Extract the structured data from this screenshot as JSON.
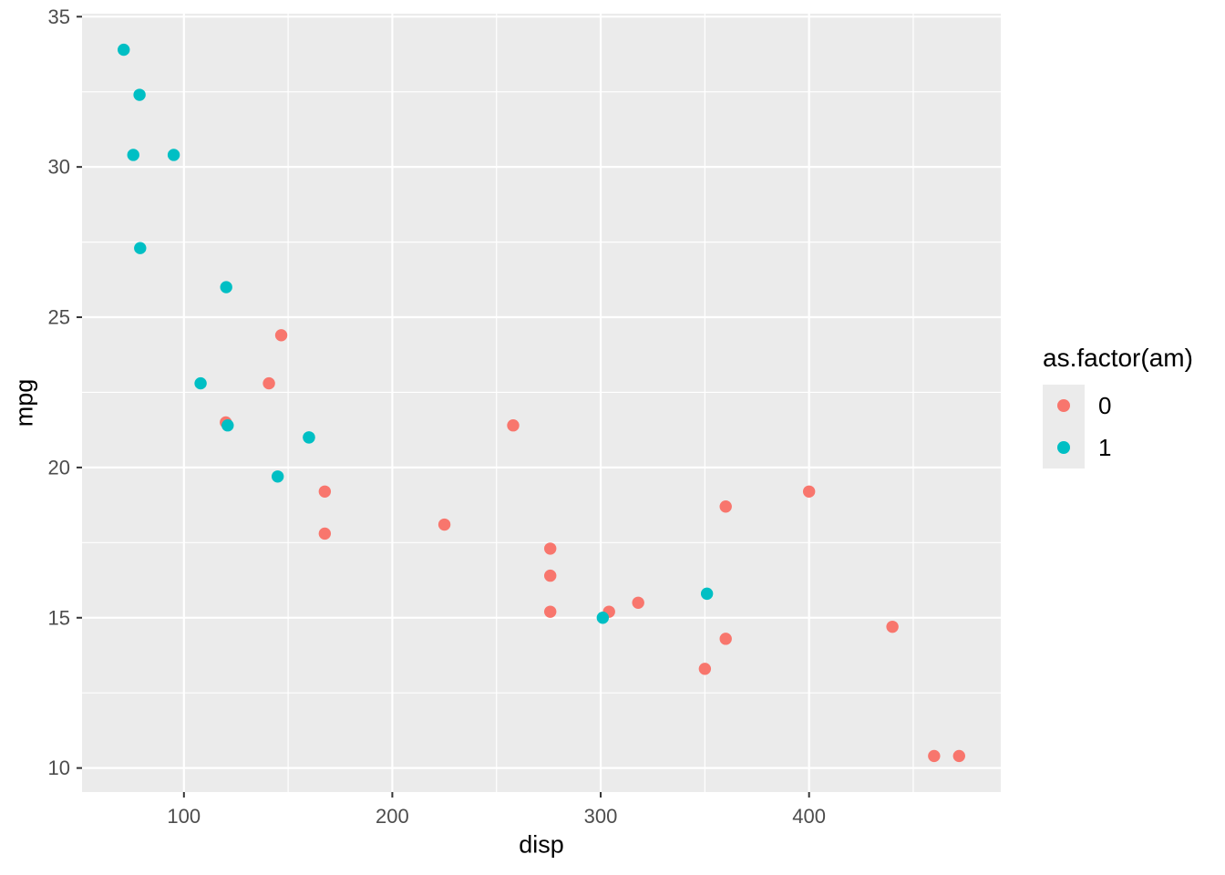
{
  "chart_data": {
    "type": "scatter",
    "title": "",
    "xlabel": "disp",
    "ylabel": "mpg",
    "xlim": [
      51.1,
      492.0
    ],
    "ylim": [
      9.2,
      35.1
    ],
    "x_major_ticks": [
      100,
      200,
      300,
      400
    ],
    "y_major_ticks": [
      10,
      15,
      20,
      25,
      30,
      35
    ],
    "x_minor_gridlines": [
      150,
      250,
      350,
      450
    ],
    "y_minor_gridlines": [
      12.5,
      17.5,
      22.5,
      27.5,
      32.5
    ],
    "grid": "on",
    "panel_background": "#EBEBEB",
    "gridline_color": "#FFFFFF",
    "tick_mark_color": "#333333",
    "tick_label_color": "#4D4D4D",
    "point_radius": 6.7,
    "legend": {
      "position": "right",
      "title": "as.factor(am)",
      "key_background": "#EBEBEB"
    },
    "series": [
      {
        "name": "0",
        "color": "#F8766D",
        "points": [
          [
            120.1,
            21.5
          ],
          [
            140.8,
            22.8
          ],
          [
            146.7,
            24.4
          ],
          [
            167.6,
            19.2
          ],
          [
            167.6,
            17.8
          ],
          [
            225,
            18.1
          ],
          [
            258,
            21.4
          ],
          [
            275.8,
            17.3
          ],
          [
            275.8,
            16.4
          ],
          [
            275.8,
            15.2
          ],
          [
            304,
            15.2
          ],
          [
            318,
            15.5
          ],
          [
            350,
            13.3
          ],
          [
            360,
            18.7
          ],
          [
            360,
            14.3
          ],
          [
            400,
            19.2
          ],
          [
            440,
            14.7
          ],
          [
            460,
            10.4
          ],
          [
            472,
            10.4
          ]
        ]
      },
      {
        "name": "1",
        "color": "#00BFC4",
        "points": [
          [
            71.1,
            33.9
          ],
          [
            75.7,
            30.4
          ],
          [
            78.7,
            32.4
          ],
          [
            79,
            27.3
          ],
          [
            95.1,
            30.4
          ],
          [
            108,
            22.8
          ],
          [
            120.3,
            26.0
          ],
          [
            121,
            21.4
          ],
          [
            145,
            19.7
          ],
          [
            160,
            21.0
          ],
          [
            160,
            21.0
          ],
          [
            301,
            15.0
          ],
          [
            351,
            15.8
          ]
        ]
      }
    ]
  }
}
